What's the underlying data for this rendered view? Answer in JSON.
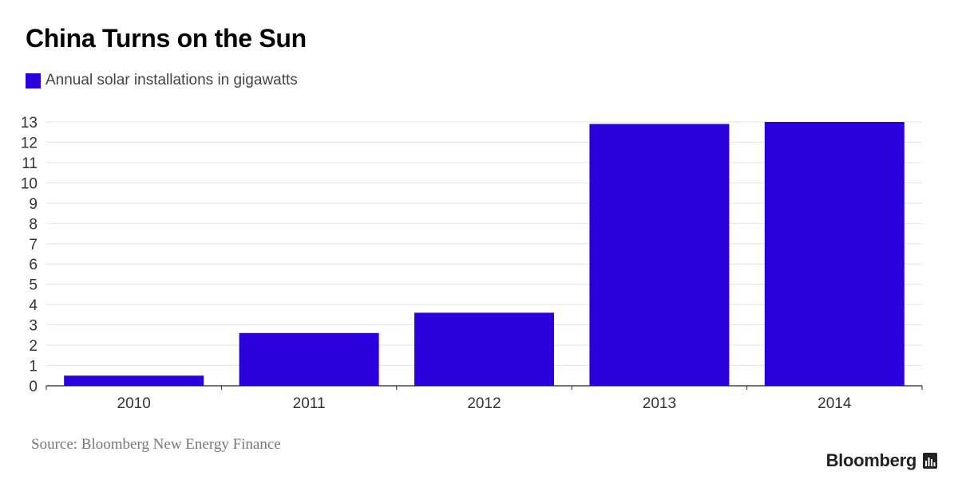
{
  "header": {
    "title": "China Turns on the Sun"
  },
  "legend": {
    "label": "Annual solar installations in gigawatts",
    "color": "#2a00dd"
  },
  "footer": {
    "source": "Source: Bloomberg New Energy Finance",
    "brand": "Bloomberg",
    "brand_icon": "bar-chart-icon"
  },
  "chart_data": {
    "type": "bar",
    "title": "China Turns on the Sun",
    "categories": [
      "2010",
      "2011",
      "2012",
      "2013",
      "2014"
    ],
    "series": [
      {
        "name": "Annual solar installations in gigawatts",
        "values": [
          0.5,
          2.6,
          3.6,
          12.9,
          13.0
        ],
        "color": "#2a00dd"
      }
    ],
    "xlabel": "",
    "ylabel": "",
    "ylim": [
      0,
      13
    ],
    "yticks": [
      0,
      1,
      2,
      3,
      4,
      5,
      6,
      7,
      8,
      9,
      10,
      11,
      12,
      13
    ],
    "grid": true,
    "legend_position": "top-left"
  }
}
